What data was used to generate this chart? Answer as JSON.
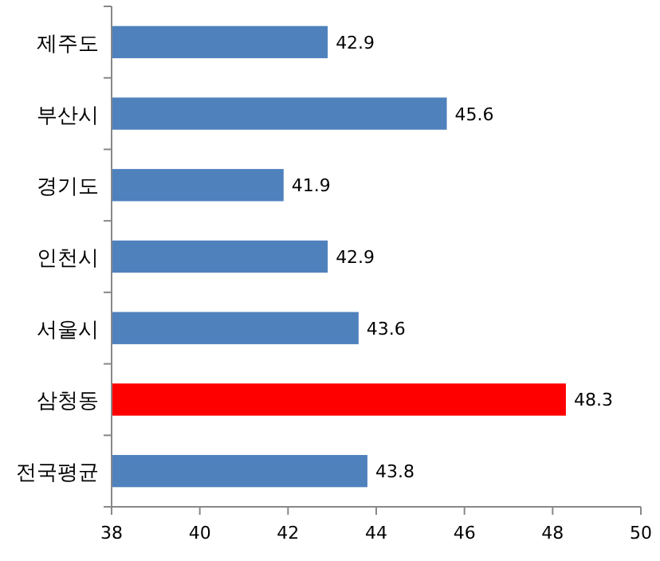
{
  "chart_data": {
    "type": "bar",
    "orientation": "horizontal",
    "categories": [
      "제주도",
      "부산시",
      "경기도",
      "인천시",
      "서울시",
      "삼청동",
      "전국평균"
    ],
    "values": [
      42.9,
      45.6,
      41.9,
      42.9,
      43.6,
      48.3,
      43.8
    ],
    "colors": [
      "#4f81bd",
      "#4f81bd",
      "#4f81bd",
      "#4f81bd",
      "#4f81bd",
      "#ff0000",
      "#4f81bd"
    ],
    "xlim": [
      38,
      50
    ],
    "xticks": [
      38,
      40,
      42,
      44,
      46,
      48,
      50
    ],
    "data_labels": true,
    "grid": false
  }
}
